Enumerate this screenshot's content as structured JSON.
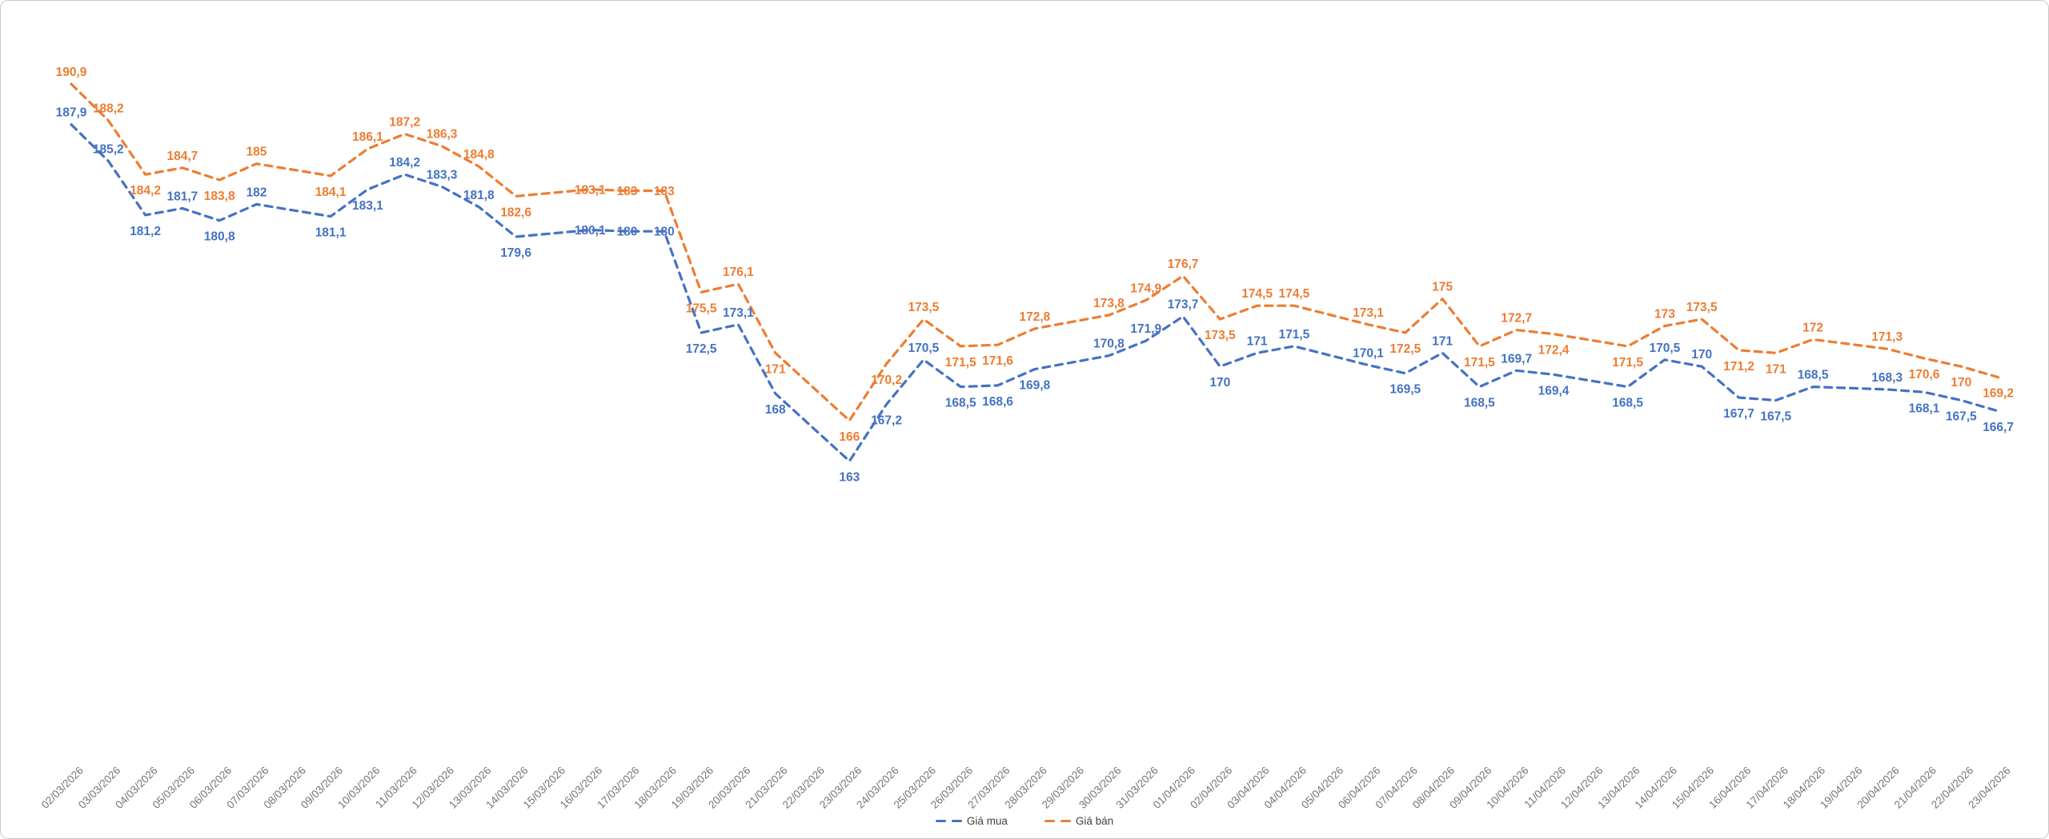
{
  "chart_data": {
    "type": "line",
    "title": "",
    "xlabel": "",
    "ylabel": "",
    "ylim": [
      161,
      193
    ],
    "grid": false,
    "legend_position": "bottom-center",
    "axis_label_color": "#757575",
    "legend_text_color": "#404040",
    "categories": [
      "02/03/2026",
      "03/03/2026",
      "04/03/2026",
      "05/03/2026",
      "06/03/2026",
      "07/03/2026",
      "08/03/2026",
      "09/03/2026",
      "10/03/2026",
      "11/03/2026",
      "12/03/2026",
      "13/03/2026",
      "14/03/2026",
      "15/03/2026",
      "16/03/2026",
      "17/03/2026",
      "18/03/2026",
      "19/03/2026",
      "20/03/2026",
      "21/03/2026",
      "22/03/2026",
      "23/03/2026",
      "24/03/2026",
      "25/03/2026",
      "26/03/2026",
      "27/03/2026",
      "28/03/2026",
      "29/03/2026",
      "30/03/2026",
      "31/03/2026",
      "01/04/2026",
      "02/04/2026",
      "03/04/2026",
      "04/04/2026",
      "05/04/2026",
      "06/04/2026",
      "07/04/2026",
      "08/04/2026",
      "09/04/2026",
      "10/04/2026",
      "11/04/2026",
      "12/04/2026",
      "13/04/2026",
      "14/04/2026",
      "15/04/2026",
      "16/04/2026",
      "17/04/2026",
      "18/04/2026",
      "19/04/2026",
      "20/04/2026",
      "21/04/2026",
      "22/04/2026",
      "23/04/2026"
    ],
    "series": [
      {
        "name": "Giá mua",
        "color": "#4472C4",
        "dashed": true,
        "values": [
          187.9,
          185.2,
          181.2,
          181.7,
          180.8,
          182,
          null,
          181.1,
          183.1,
          184.2,
          183.3,
          181.8,
          179.6,
          null,
          180.1,
          180,
          180,
          172.5,
          173.1,
          168,
          null,
          163,
          167.2,
          170.5,
          168.5,
          168.6,
          169.8,
          null,
          170.8,
          171.9,
          173.7,
          170,
          171,
          171.5,
          null,
          170.1,
          169.5,
          171,
          168.5,
          169.7,
          169.4,
          null,
          168.5,
          170.5,
          170,
          167.7,
          167.5,
          168.5,
          null,
          168.3,
          168.1,
          167.5,
          166.7
        ],
        "labels": [
          "187,9",
          "185,2",
          "181,2",
          "181,7",
          "180,8",
          "182",
          null,
          "181,1",
          "183,1",
          "184,2",
          "183,3",
          "181,8",
          "179,6",
          null,
          "180,1",
          "180",
          "180",
          "172,5",
          "173,1",
          "168",
          null,
          "163",
          "167,2",
          "170,5",
          "168,5",
          "168,6",
          "169,8",
          null,
          "170,8",
          "171,9",
          "173,7",
          "170",
          "171",
          "171,5",
          null,
          "170,1",
          "169,5",
          "171",
          "168,5",
          "169,7",
          "169,4",
          null,
          "168,5",
          "170,5",
          "170",
          "167,7",
          "167,5",
          "168,5",
          null,
          "168,3",
          "168,1",
          "167,5",
          "166,7"
        ],
        "label_pos": [
          "A",
          "A",
          "B",
          "A",
          "B",
          "A",
          null,
          "B",
          "B",
          "A",
          "A",
          "A",
          "B",
          null,
          "C",
          "C",
          "C",
          "B",
          "A",
          "B",
          null,
          "B",
          "B",
          "A",
          "B",
          "B",
          "B",
          null,
          "A",
          "A",
          "A",
          "B",
          "A",
          "A",
          null,
          "A",
          "B",
          "A",
          "B",
          "A",
          "B",
          null,
          "B",
          "A",
          "A",
          "B",
          "B",
          "A",
          null,
          "A",
          "B",
          "B",
          "B"
        ]
      },
      {
        "name": "Giá bán",
        "color": "#ED7D31",
        "dashed": true,
        "values": [
          190.9,
          188.2,
          184.2,
          184.7,
          183.8,
          185,
          null,
          184.1,
          186.1,
          187.2,
          186.3,
          184.8,
          182.6,
          null,
          183.1,
          183,
          183,
          175.5,
          176.1,
          171,
          null,
          166,
          170.2,
          173.5,
          171.5,
          171.6,
          172.8,
          null,
          173.8,
          174.9,
          176.7,
          173.5,
          174.5,
          174.5,
          null,
          173.1,
          172.5,
          175,
          171.5,
          172.7,
          172.4,
          null,
          171.5,
          173,
          173.5,
          171.2,
          171,
          172,
          null,
          171.3,
          170.6,
          170,
          169.2
        ],
        "labels": [
          "190,9",
          "188,2",
          "184,2",
          "184,7",
          "183,8",
          "185",
          null,
          "184,1",
          "186,1",
          "187,2",
          "186,3",
          "184,8",
          "182,6",
          null,
          "183,1",
          "183",
          "183",
          "175,5",
          "176,1",
          "171",
          null,
          "166",
          "170,2",
          "173,5",
          "171,5",
          "171,6",
          "172,8",
          null,
          "173,8",
          "174,9",
          "176,7",
          "173,5",
          "174,5",
          "174,5",
          null,
          "173,1",
          "172,5",
          "175",
          "171,5",
          "172,7",
          "172,4",
          null,
          "171,5",
          "173",
          "173,5",
          "171,2",
          "171",
          "172",
          null,
          "171,3",
          "170,6",
          "170",
          "169,2"
        ],
        "label_pos": [
          "A",
          "A",
          "B",
          "A",
          "B",
          "A",
          null,
          "B",
          "A",
          "A",
          "A",
          "A",
          "B",
          null,
          "C",
          "C",
          "C",
          "B",
          "A",
          "B",
          null,
          "B",
          "B",
          "A",
          "B",
          "B",
          "A",
          null,
          "A",
          "A",
          "A",
          "B",
          "A",
          "A",
          null,
          "A",
          "B",
          "A",
          "B",
          "A",
          "B",
          null,
          "B",
          "A",
          "A",
          "B",
          "B",
          "A",
          null,
          "A",
          "B",
          "B",
          "B"
        ]
      }
    ]
  }
}
